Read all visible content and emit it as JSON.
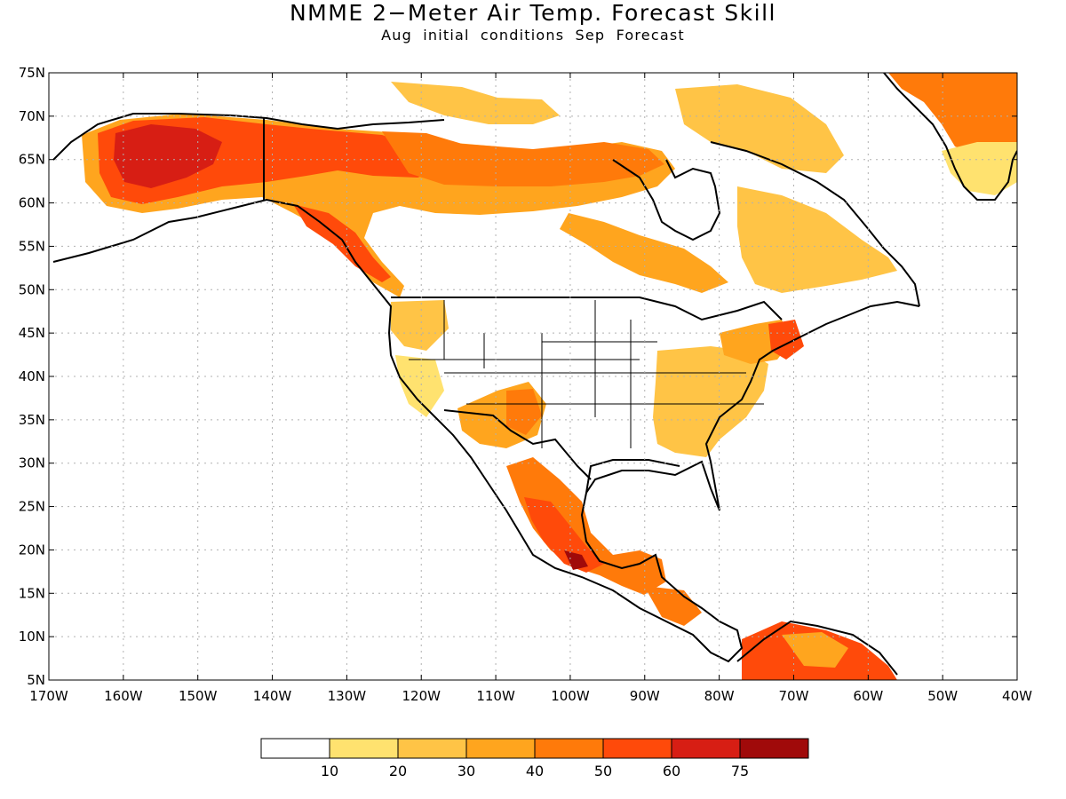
{
  "title": "NMME 2−Meter Air Temp. Forecast Skill",
  "subtitle": "Aug initial conditions  Sep Forecast",
  "axes": {
    "lat_labels": [
      "75N",
      "70N",
      "65N",
      "60N",
      "55N",
      "50N",
      "45N",
      "40N",
      "35N",
      "30N",
      "25N",
      "20N",
      "15N",
      "10N",
      "5N"
    ],
    "lon_labels": [
      "170W",
      "160W",
      "150W",
      "140W",
      "130W",
      "120W",
      "110W",
      "100W",
      "90W",
      "80W",
      "70W",
      "60W",
      "50W",
      "40W"
    ],
    "lat_range": [
      5,
      75
    ],
    "lon_range": [
      -170,
      -40
    ],
    "grid": "dotted"
  },
  "colorbar": {
    "labels": [
      "10",
      "20",
      "30",
      "40",
      "50",
      "60",
      "75"
    ],
    "colors": [
      "#ffffff",
      "#ffe26f",
      "#ffc446",
      "#ffa51e",
      "#ff7a0a",
      "#ff4a0a",
      "#d71e14",
      "#a00a0a"
    ]
  }
}
